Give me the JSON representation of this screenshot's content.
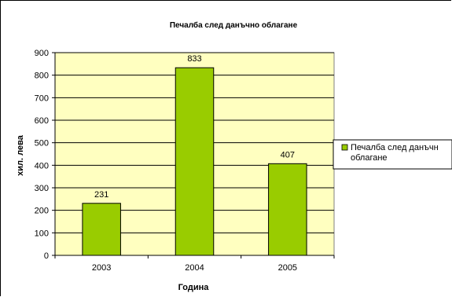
{
  "chart_data": {
    "type": "bar",
    "title": "Печалба след данъчно облагане",
    "xlabel": "Година",
    "ylabel": "хил. лева",
    "categories": [
      "2003",
      "2004",
      "2005"
    ],
    "series": [
      {
        "name": "Печалба след данъчно облагане",
        "values": [
          231,
          833,
          407
        ]
      }
    ],
    "data_labels": [
      "231",
      "833",
      "407"
    ],
    "ylim": [
      0,
      900
    ],
    "yticks": [
      0,
      100,
      200,
      300,
      400,
      500,
      600,
      700,
      800,
      900
    ],
    "grid": true,
    "legend_position": "right",
    "legend_lines": [
      "Печалба след данъчн",
      "облагане"
    ],
    "colors": {
      "bar": "#99CC00",
      "plot_background": "#FFFFC0",
      "grid": "#000000"
    }
  }
}
